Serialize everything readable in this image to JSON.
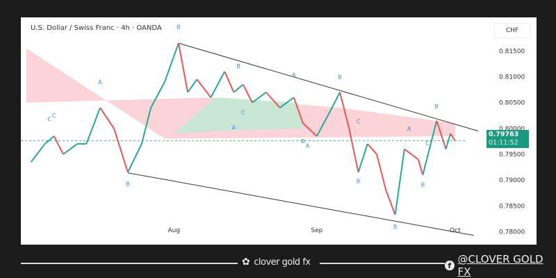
{
  "header": {
    "title": "U.S. Dollar / Swiss Franc · 4h · OANDA",
    "currency": "CHF"
  },
  "price_badge": {
    "price": "0.79763",
    "countdown": "01:11:52",
    "color": "#199a7e"
  },
  "footer": {
    "brand": "clover gold fx",
    "social_handle": "@CLOVER GOLD FX",
    "social_icon": "facebook-icon",
    "brand_icon": "clover-icon"
  },
  "chart_data": {
    "type": "line",
    "title": "U.S. Dollar / Swiss Franc · 4h · OANDA",
    "ylabel": "CHF",
    "ylim": [
      0.7775,
      0.8215
    ],
    "xlim": [
      "2024-06-30",
      "2024-10-06"
    ],
    "y_ticks": [
      "0.81500",
      "0.81000",
      "0.80500",
      "0.80000",
      "0.79500",
      "0.79000",
      "0.78500",
      "0.78000"
    ],
    "y_tick_values": [
      0.815,
      0.81,
      0.805,
      0.8,
      0.795,
      0.79,
      0.785,
      0.78
    ],
    "x_ticks": [
      {
        "label": "Aug",
        "date": "2024-08-01"
      },
      {
        "label": "Sep",
        "date": "2024-09-01"
      },
      {
        "label": "Oct",
        "date": "2024-10-01"
      }
    ],
    "grid": false,
    "colors": {
      "up": "#26a69a",
      "down": "#ef5350",
      "cloud_bear": "#f8c6c9",
      "cloud_bull": "#bdebd3"
    },
    "series": [
      {
        "dates": [
          "2024-07-01",
          "2024-07-04",
          "2024-07-06",
          "2024-07-08",
          "2024-07-11",
          "2024-07-13",
          "2024-07-16",
          "2024-07-19",
          "2024-07-22",
          "2024-07-25",
          "2024-07-27",
          "2024-07-30",
          "2024-08-02",
          "2024-08-04",
          "2024-08-06",
          "2024-08-09",
          "2024-08-12",
          "2024-08-14",
          "2024-08-16",
          "2024-08-18",
          "2024-08-21",
          "2024-08-24",
          "2024-08-27",
          "2024-08-29",
          "2024-09-01",
          "2024-09-04",
          "2024-09-06",
          "2024-09-08",
          "2024-09-10",
          "2024-09-12",
          "2024-09-14",
          "2024-09-16",
          "2024-09-18",
          "2024-09-20",
          "2024-09-23",
          "2024-09-24",
          "2024-09-27",
          "2024-09-29",
          "2024-09-30",
          "2024-10-01"
        ],
        "values": [
          0.7935,
          0.797,
          0.7985,
          0.795,
          0.797,
          0.797,
          0.804,
          0.8,
          0.7915,
          0.797,
          0.804,
          0.809,
          0.8165,
          0.807,
          0.8095,
          0.806,
          0.811,
          0.807,
          0.8085,
          0.805,
          0.807,
          0.804,
          0.806,
          0.801,
          0.7985,
          0.8035,
          0.807,
          0.8,
          0.7915,
          0.797,
          0.795,
          0.788,
          0.7833,
          0.796,
          0.794,
          0.791,
          0.8015,
          0.796,
          0.799,
          0.7976
        ]
      }
    ],
    "trendlines": [
      {
        "from": {
          "date": "2024-08-02",
          "price": 0.8165
        },
        "to": {
          "date": "2024-10-06",
          "price": 0.7995
        }
      },
      {
        "from": {
          "date": "2024-07-22",
          "price": 0.7914
        },
        "to": {
          "date": "2024-10-05",
          "price": 0.7793
        }
      }
    ],
    "current_price": 0.79763,
    "annotations": [
      {
        "text": "B",
        "date": "2024-08-02",
        "price": 0.81929
      },
      {
        "text": "A",
        "date": "2024-07-16",
        "price": 0.80857
      },
      {
        "text": "C",
        "date": "2024-07-05",
        "price": 0.80143
      },
      {
        "text": "C",
        "date": "2024-07-06",
        "price": 0.80214
      },
      {
        "text": "B",
        "date": "2024-07-22",
        "price": 0.78886
      },
      {
        "text": "A",
        "date": "2024-08-14",
        "price": 0.79986
      },
      {
        "text": "C",
        "date": "2024-08-16",
        "price": 0.80271
      },
      {
        "text": "B",
        "date": "2024-08-15",
        "price": 0.81171
      },
      {
        "text": "A",
        "date": "2024-08-27",
        "price": 0.81
      },
      {
        "text": "B",
        "date": "2024-09-06",
        "price": 0.80957
      },
      {
        "text": "B",
        "date": "2024-08-29",
        "price": 0.79714
      },
      {
        "text": "A",
        "date": "2024-08-30",
        "price": 0.79629
      },
      {
        "text": "C",
        "date": "2024-09-10",
        "price": 0.801
      },
      {
        "text": "B",
        "date": "2024-09-10",
        "price": 0.78943
      },
      {
        "text": "B",
        "date": "2024-09-18",
        "price": 0.78057
      },
      {
        "text": "A",
        "date": "2024-09-21",
        "price": 0.79957
      },
      {
        "text": "C",
        "date": "2024-09-25",
        "price": 0.79671
      },
      {
        "text": "B",
        "date": "2024-09-27",
        "price": 0.80386
      },
      {
        "text": "B",
        "date": "2024-09-24",
        "price": 0.78871
      }
    ]
  }
}
